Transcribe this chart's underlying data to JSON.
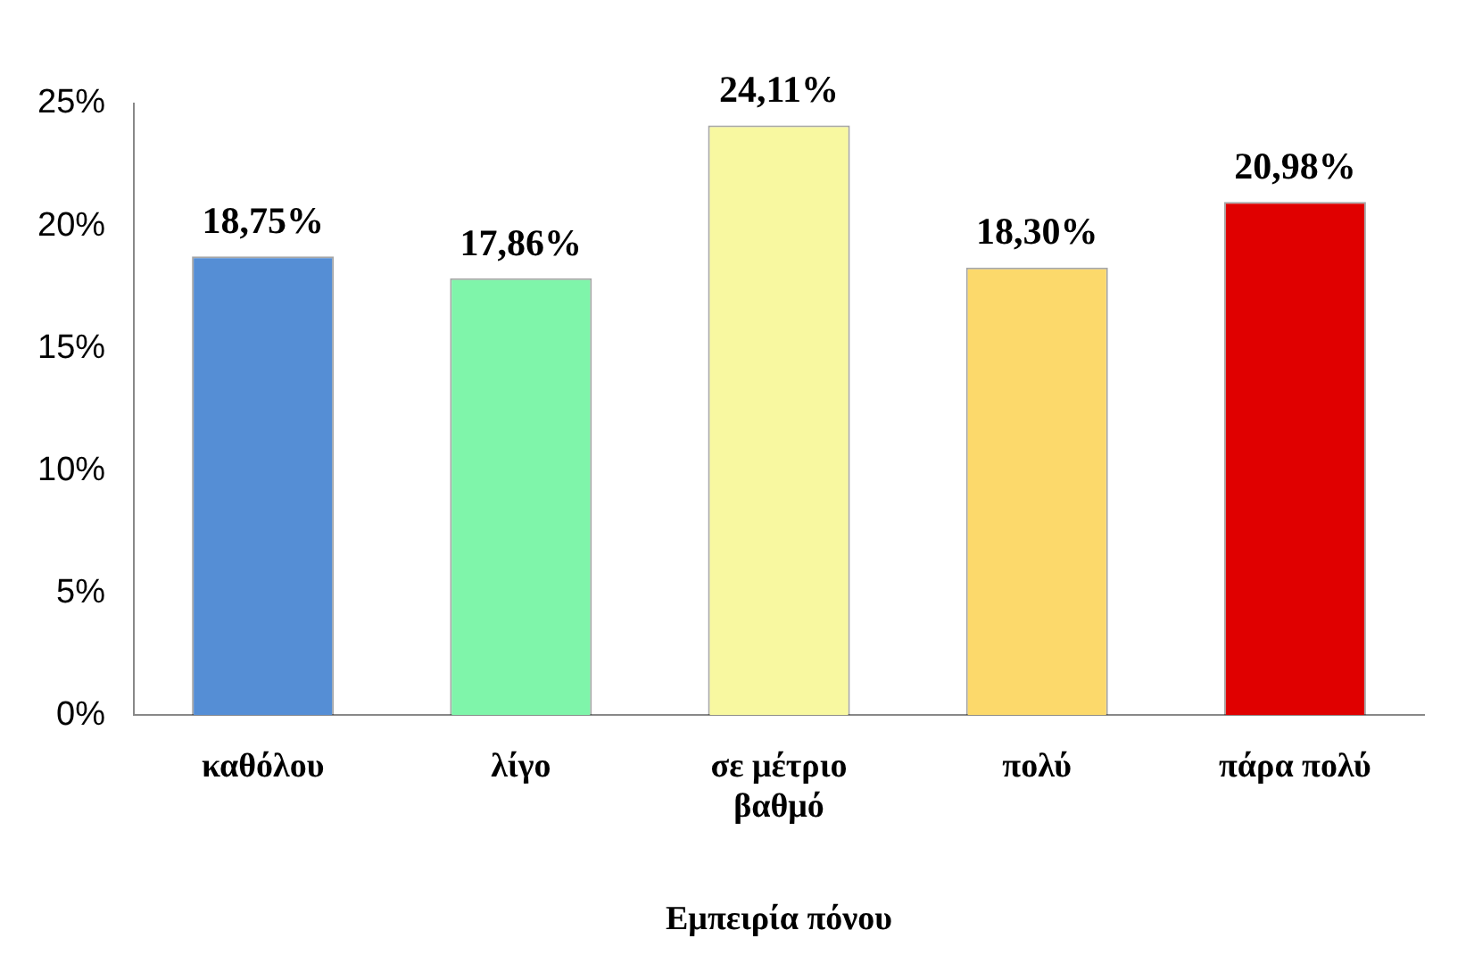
{
  "chart_data": {
    "type": "bar",
    "xlabel": "Εμπειρία πόνου",
    "categories": [
      "καθόλου",
      "λίγο",
      "σε μέτριο βαθμό",
      "πολύ",
      "πάρα πολύ"
    ],
    "values": [
      18.75,
      17.86,
      24.11,
      18.3,
      20.98
    ],
    "colors": [
      "#558ed5",
      "#7ff5aa",
      "#f8f8a0",
      "#fcd96b",
      "#e00000"
    ],
    "value_labels": [
      "18,75%",
      "17,86%",
      "24,11%",
      "18,30%",
      "20,98%"
    ],
    "ylim": [
      0,
      25
    ],
    "yticks": [
      {
        "value": 0,
        "label": "0%"
      },
      {
        "value": 5,
        "label": "5%"
      },
      {
        "value": 10,
        "label": "10%"
      },
      {
        "value": 15,
        "label": "15%"
      },
      {
        "value": 20,
        "label": "20%"
      },
      {
        "value": 25,
        "label": "25%"
      }
    ],
    "grid": false,
    "legend": false
  }
}
